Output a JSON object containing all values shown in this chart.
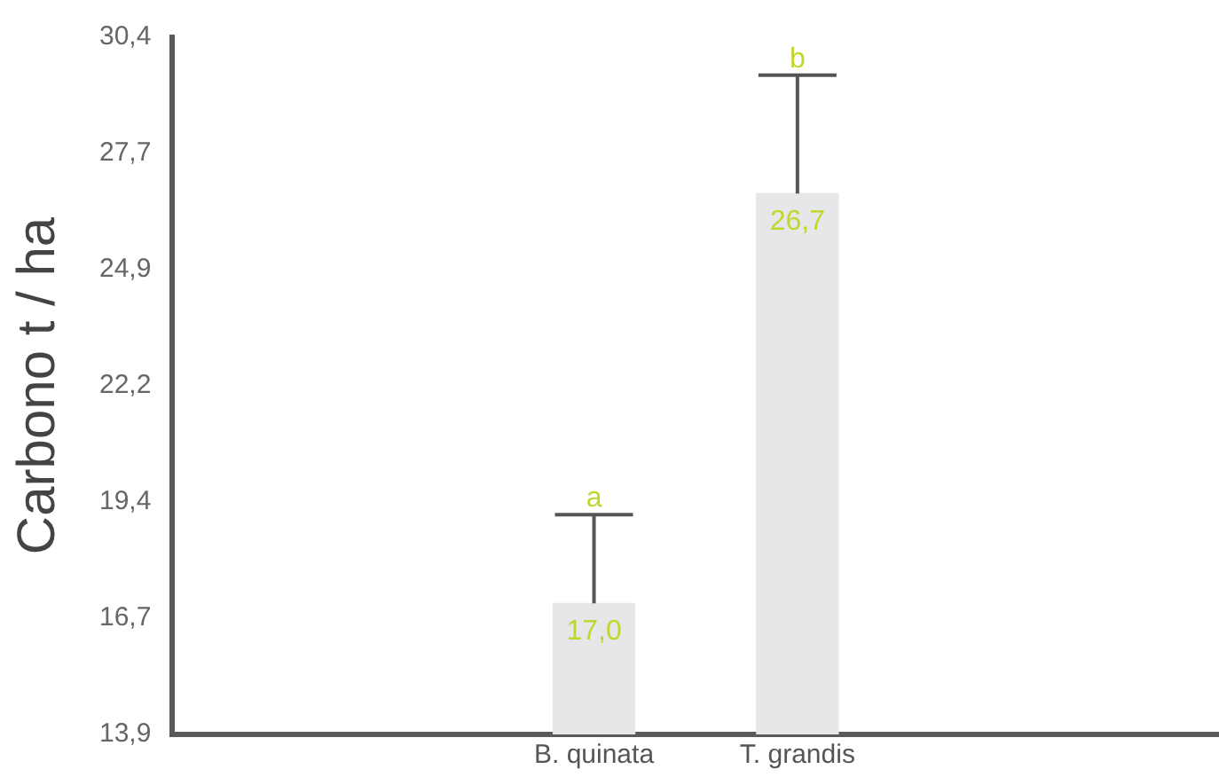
{
  "chart_data": {
    "type": "bar",
    "ylabel": "Carbono t / ha",
    "categories": [
      "B. quinata",
      "T. grandis"
    ],
    "values": [
      17.0,
      26.7
    ],
    "value_labels": [
      "17,0",
      "26,7"
    ],
    "errors": [
      [
        17.0,
        19.1
      ],
      [
        26.7,
        29.5
      ]
    ],
    "color": "#e6e7e9",
    "ylim": [
      13.9,
      30.4
    ],
    "yticks": [
      {
        "value": 13.9,
        "label": "13,9"
      },
      {
        "value": 16.65,
        "label": "16,7"
      },
      {
        "value": 19.4,
        "label": "19,4"
      },
      {
        "value": 22.15,
        "label": "22,2"
      },
      {
        "value": 24.9,
        "label": "24,9"
      },
      {
        "value": 27.65,
        "label": "27,7"
      },
      {
        "value": 30.4,
        "label": "30,4"
      }
    ],
    "annotations": [
      "a",
      "b"
    ],
    "grid": false,
    "legend": false
  }
}
